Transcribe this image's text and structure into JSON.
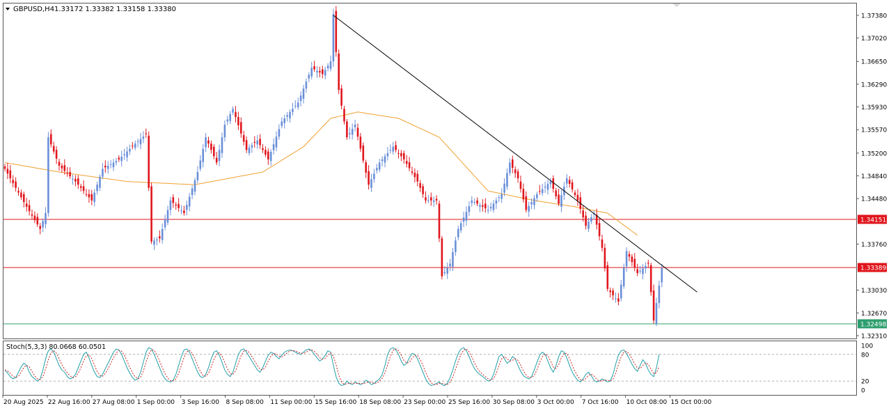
{
  "header": {
    "symbol": "GBPUSD,H4",
    "ohlc": "1.33172 1.33382 1.33158 1.33380"
  },
  "colors": {
    "bull": "#6a8fd8",
    "bear": "#e0161d",
    "ma": "#f0a030",
    "trendline": "#000000",
    "hline": "#e0161d",
    "support": "#2e9e6e",
    "stoch_main": "#20a0a8",
    "stoch_signal": "#d02020"
  },
  "price_axis": {
    "ticks": [
      "1.37380",
      "1.37020",
      "1.36650",
      "1.36290",
      "1.35930",
      "1.35570",
      "1.35200",
      "1.34840",
      "1.34480",
      "1.33760",
      "1.33030",
      "1.32670",
      "1.32310"
    ],
    "ylim": [
      1.3231,
      1.3738
    ]
  },
  "levels": [
    {
      "label": "1.34151",
      "value": 1.34151,
      "color": "#e0161d"
    },
    {
      "label": "1.33389",
      "value": 1.33389,
      "color": "#e0161d"
    },
    {
      "label": "1.32498",
      "value": 1.32498,
      "color": "#2e9e6e"
    }
  ],
  "time_axis": {
    "labels": [
      "20 Aug 2025",
      "22 Aug 16:00",
      "27 Aug 08:00",
      "1 Sep 00:00",
      "3 Sep 16:00",
      "8 Sep 08:00",
      "11 Sep 00:00",
      "15 Sep 16:00",
      "18 Sep 08:00",
      "23 Sep 00:00",
      "25 Sep 16:00",
      "30 Sep 08:00",
      "3 Oct 00:00",
      "7 Oct 16:00",
      "10 Oct 08:00",
      "15 Oct 00:00"
    ]
  },
  "stoch": {
    "label": "Stoch(5,3,3) 80.0668 60.0501",
    "ticks": [
      "100",
      "80",
      "20",
      "0"
    ]
  },
  "chart_data": [
    {
      "type": "candlestick",
      "title": "GBPUSD,H4",
      "ylim": [
        1.3231,
        1.3738
      ],
      "anchors": [
        {
          "bar": 0,
          "price": 1.3495
        },
        {
          "bar": 8,
          "price": 1.3435
        },
        {
          "bar": 13,
          "price": 1.34
        },
        {
          "bar": 15,
          "price": 1.3425
        },
        {
          "bar": 16,
          "price": 1.3545
        },
        {
          "bar": 20,
          "price": 1.35
        },
        {
          "bar": 26,
          "price": 1.3475
        },
        {
          "bar": 32,
          "price": 1.3445
        },
        {
          "bar": 36,
          "price": 1.3495
        },
        {
          "bar": 42,
          "price": 1.351
        },
        {
          "bar": 48,
          "price": 1.3535
        },
        {
          "bar": 52,
          "price": 1.355
        },
        {
          "bar": 54,
          "price": 1.338
        },
        {
          "bar": 57,
          "price": 1.3385
        },
        {
          "bar": 61,
          "price": 1.3445
        },
        {
          "bar": 66,
          "price": 1.3425
        },
        {
          "bar": 71,
          "price": 1.349
        },
        {
          "bar": 74,
          "price": 1.3545
        },
        {
          "bar": 78,
          "price": 1.3505
        },
        {
          "bar": 81,
          "price": 1.3565
        },
        {
          "bar": 84,
          "price": 1.359
        },
        {
          "bar": 89,
          "price": 1.3525
        },
        {
          "bar": 93,
          "price": 1.354
        },
        {
          "bar": 97,
          "price": 1.351
        },
        {
          "bar": 102,
          "price": 1.357
        },
        {
          "bar": 108,
          "price": 1.36
        },
        {
          "bar": 113,
          "price": 1.3655
        },
        {
          "bar": 117,
          "price": 1.3645
        },
        {
          "bar": 120,
          "price": 1.3665
        },
        {
          "bar": 121,
          "price": 1.374
        },
        {
          "bar": 123,
          "price": 1.362
        },
        {
          "bar": 126,
          "price": 1.3545
        },
        {
          "bar": 129,
          "price": 1.3565
        },
        {
          "bar": 134,
          "price": 1.347
        },
        {
          "bar": 138,
          "price": 1.3505
        },
        {
          "bar": 143,
          "price": 1.353
        },
        {
          "bar": 147,
          "price": 1.351
        },
        {
          "bar": 152,
          "price": 1.3475
        },
        {
          "bar": 155,
          "price": 1.3445
        },
        {
          "bar": 159,
          "price": 1.3445
        },
        {
          "bar": 161,
          "price": 1.3325
        },
        {
          "bar": 164,
          "price": 1.3345
        },
        {
          "bar": 167,
          "price": 1.34
        },
        {
          "bar": 172,
          "price": 1.3445
        },
        {
          "bar": 178,
          "price": 1.343
        },
        {
          "bar": 183,
          "price": 1.3455
        },
        {
          "bar": 186,
          "price": 1.3505
        },
        {
          "bar": 189,
          "price": 1.348
        },
        {
          "bar": 192,
          "price": 1.343
        },
        {
          "bar": 196,
          "price": 1.3455
        },
        {
          "bar": 201,
          "price": 1.3475
        },
        {
          "bar": 204,
          "price": 1.344
        },
        {
          "bar": 207,
          "price": 1.348
        },
        {
          "bar": 211,
          "price": 1.3445
        },
        {
          "bar": 214,
          "price": 1.3405
        },
        {
          "bar": 217,
          "price": 1.3425
        },
        {
          "bar": 220,
          "price": 1.337
        },
        {
          "bar": 222,
          "price": 1.3305
        },
        {
          "bar": 226,
          "price": 1.3285
        },
        {
          "bar": 229,
          "price": 1.3365
        },
        {
          "bar": 233,
          "price": 1.333
        },
        {
          "bar": 237,
          "price": 1.3345
        },
        {
          "bar": 239,
          "price": 1.3255
        },
        {
          "bar": 242,
          "price": 1.3338
        }
      ],
      "ma_series": {
        "name": "",
        "anchors": [
          {
            "bar": 0,
            "price": 1.3505
          },
          {
            "bar": 20,
            "price": 1.349
          },
          {
            "bar": 45,
            "price": 1.3475
          },
          {
            "bar": 70,
            "price": 1.347
          },
          {
            "bar": 95,
            "price": 1.349
          },
          {
            "bar": 110,
            "price": 1.353
          },
          {
            "bar": 120,
            "price": 1.3575
          },
          {
            "bar": 130,
            "price": 1.3585
          },
          {
            "bar": 145,
            "price": 1.3575
          },
          {
            "bar": 160,
            "price": 1.3545
          },
          {
            "bar": 178,
            "price": 1.346
          },
          {
            "bar": 195,
            "price": 1.3445
          },
          {
            "bar": 210,
            "price": 1.3435
          },
          {
            "bar": 222,
            "price": 1.3425
          },
          {
            "bar": 233,
            "price": 1.339
          }
        ]
      },
      "trendline": {
        "from": {
          "bar": 121,
          "price": 1.3738
        },
        "to": {
          "bar": 255,
          "price": 1.33
        }
      },
      "xlabels": [
        "20 Aug 2025",
        "22 Aug 16:00",
        "27 Aug 08:00",
        "1 Sep 00:00",
        "3 Sep 16:00",
        "8 Sep 08:00",
        "11 Sep 00:00",
        "15 Sep 16:00",
        "18 Sep 08:00",
        "23 Sep 00:00",
        "25 Sep 16:00",
        "30 Sep 08:00",
        "3 Oct 00:00",
        "7 Oct 16:00",
        "10 Oct 08:00",
        "15 Oct 00:00"
      ]
    },
    {
      "type": "line",
      "title": "Stoch(5,3,3) 80.0668 60.0501",
      "ylim": [
        0,
        100
      ],
      "levels": [
        80,
        20
      ],
      "series": [
        {
          "name": "",
          "values": [
            45,
            38,
            30,
            25,
            28,
            40,
            52,
            60,
            55,
            40,
            30,
            25,
            20,
            25,
            45,
            70,
            88,
            92,
            85,
            70,
            55,
            45,
            40,
            30,
            25,
            28,
            35,
            50,
            65,
            80,
            85,
            72,
            55,
            40,
            30,
            28,
            35,
            48,
            60,
            72,
            85,
            92,
            90,
            80,
            65,
            50,
            38,
            28,
            22,
            25,
            40,
            62,
            85,
            95,
            92,
            80,
            65,
            50,
            35,
            25,
            20,
            18,
            22,
            35,
            55,
            75,
            90,
            92,
            85,
            70,
            55,
            40,
            30,
            28,
            35,
            50,
            70,
            85,
            88,
            78,
            62,
            45,
            35,
            30,
            40,
            60,
            80,
            90,
            92,
            85,
            75,
            65,
            55,
            45,
            40,
            50,
            65,
            78,
            85,
            82,
            75,
            70,
            78,
            85,
            88,
            90,
            88,
            85,
            82,
            80,
            85,
            90,
            92,
            88,
            80,
            72,
            65,
            70,
            78,
            88,
            85,
            55,
            30,
            15,
            10,
            12,
            20,
            15,
            12,
            18,
            15,
            12,
            15,
            22,
            18,
            12,
            15,
            20,
            25,
            35,
            55,
            80,
            92,
            95,
            90,
            80,
            65,
            55,
            60,
            72,
            82,
            80,
            70,
            55,
            40,
            25,
            15,
            10,
            12,
            15,
            18,
            12,
            10,
            15,
            28,
            45,
            65,
            82,
            92,
            95,
            88,
            75,
            60,
            48,
            40,
            35,
            30,
            25,
            20,
            22,
            35,
            55,
            75,
            80,
            70,
            60,
            65,
            75,
            70,
            55,
            42,
            32,
            28,
            25,
            30,
            45,
            62,
            78,
            85,
            80,
            65,
            50,
            40,
            55,
            75,
            88,
            85,
            72,
            55,
            40,
            30,
            22,
            18,
            25,
            35,
            40,
            32,
            22,
            18,
            20,
            25,
            22,
            18,
            20,
            35,
            58,
            78,
            88,
            90,
            82,
            70,
            58,
            48,
            42,
            55,
            68,
            60,
            45,
            35,
            30,
            50,
            80
          ]
        }
      ]
    }
  ]
}
